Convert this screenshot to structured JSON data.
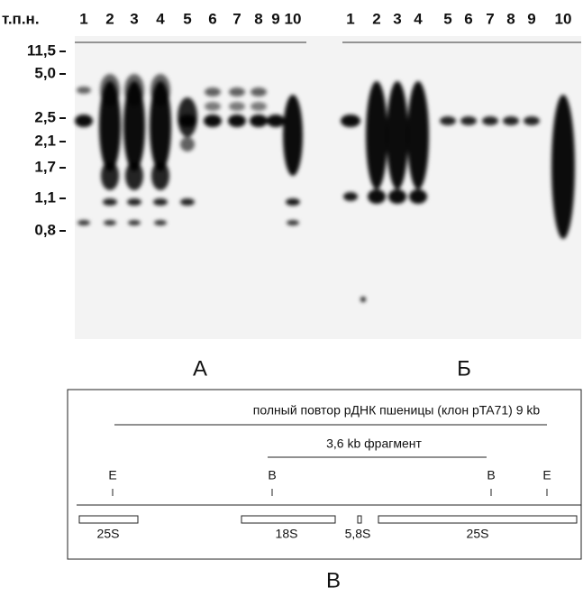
{
  "units_label": "т.п.н.",
  "size_markers": [
    "11,5",
    "5,0",
    "2,5",
    "2,1",
    "1,7",
    "1,1",
    "0,8"
  ],
  "panel_a": {
    "label": "А",
    "lanes": [
      "1",
      "2",
      "3",
      "4",
      "5",
      "6",
      "7",
      "8",
      "9",
      "10"
    ]
  },
  "panel_b": {
    "label": "Б",
    "lanes": [
      "1",
      "2",
      "3",
      "4",
      "5",
      "6",
      "7",
      "8",
      "9",
      "10"
    ]
  },
  "diagram": {
    "label": "В",
    "title": "полный повтор рДНК пшеницы (клон pTA71) 9 kb",
    "fragment": "3,6 kb фрагмент",
    "sites": [
      "E",
      "B",
      "B",
      "E"
    ],
    "genes": [
      "25S",
      "18S",
      "5,8S",
      "25S"
    ]
  }
}
